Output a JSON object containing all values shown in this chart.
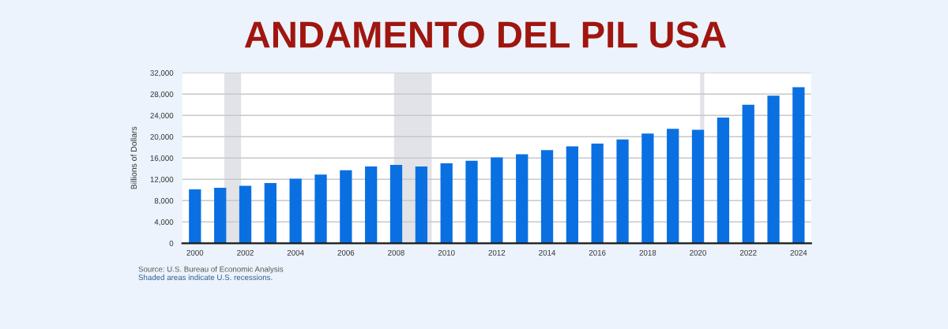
{
  "chart_data": {
    "type": "bar",
    "title": "ANDAMENTO DEL PIL USA",
    "ylabel": "Billions of Dollars",
    "x": [
      "2000",
      "2001",
      "2002",
      "2003",
      "2004",
      "2005",
      "2006",
      "2007",
      "2008",
      "2009",
      "2010",
      "2011",
      "2012",
      "2013",
      "2014",
      "2015",
      "2016",
      "2017",
      "2018",
      "2019",
      "2020",
      "2021",
      "2022",
      "2023",
      "2024"
    ],
    "values": [
      10100,
      10400,
      10800,
      11300,
      12100,
      12900,
      13700,
      14400,
      14700,
      14400,
      15000,
      15500,
      16100,
      16700,
      17500,
      18200,
      18700,
      19500,
      20600,
      21500,
      21300,
      23600,
      26000,
      27700,
      29300
    ],
    "color": "#0a70e2",
    "xlim": [
      "1999-07",
      "2024-07"
    ],
    "xticks": [
      "2000",
      "2002",
      "2004",
      "2006",
      "2008",
      "2010",
      "2012",
      "2014",
      "2016",
      "2018",
      "2020",
      "2022",
      "2024"
    ],
    "ylim": [
      0,
      32000
    ],
    "yticks": [
      0,
      {
        "value": 4000,
        "label": "4,000"
      },
      {
        "value": 8000,
        "label": "8,000"
      },
      {
        "value": 12000,
        "label": "12,000"
      },
      {
        "value": 16000,
        "label": "16,000"
      },
      {
        "value": 20000,
        "label": "20,000"
      },
      {
        "value": 24000,
        "label": "24,000"
      },
      {
        "value": 28000,
        "label": "28,000"
      },
      {
        "value": 32000,
        "label": "32,000"
      }
    ],
    "grid": "y",
    "bands": [
      {
        "axis": "x",
        "from": "2001-03",
        "to": "2001-11",
        "color": "#e1e3e8"
      },
      {
        "axis": "x",
        "from": "2007-12",
        "to": "2009-06",
        "color": "#e1e3e8"
      },
      {
        "axis": "x",
        "from": "2020-02",
        "to": "2020-04",
        "color": "#e1e3e8"
      }
    ],
    "annotations": [
      "Source: U.S. Bureau of Economic Analysis",
      "Shaded areas indicate U.S. recessions."
    ]
  }
}
